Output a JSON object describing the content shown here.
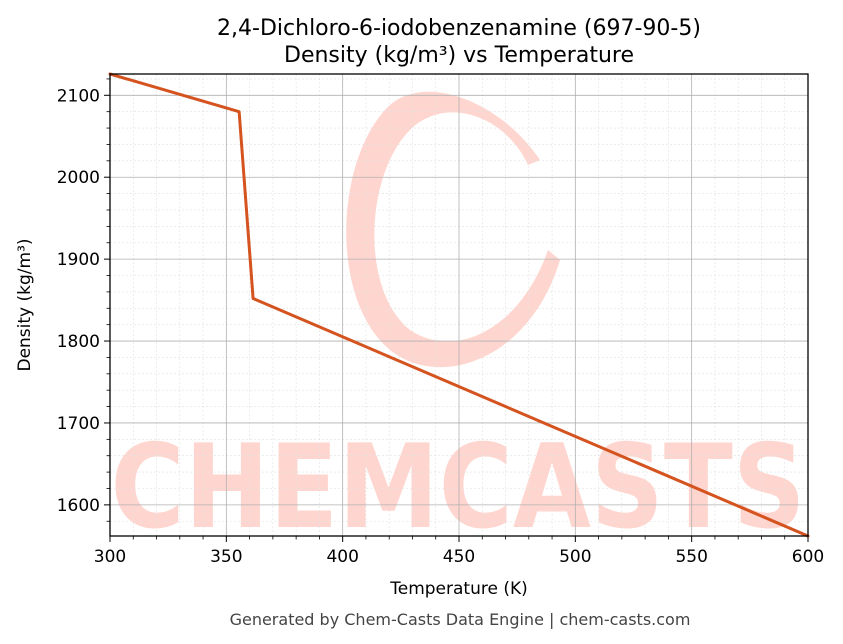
{
  "chart_data": {
    "type": "line",
    "title": "2,4-Dichloro-6-iodobenzenamine (697-90-5)",
    "subtitle": "Density (kg/m³) vs Temperature",
    "xlabel": "Temperature (K)",
    "ylabel": "Density (kg/m³)",
    "xlim": [
      300,
      600
    ],
    "ylim": [
      1562,
      2126
    ],
    "xticks": [
      300,
      350,
      400,
      450,
      500,
      550,
      600
    ],
    "yticks": [
      1600,
      1700,
      1800,
      1900,
      2000,
      2100
    ],
    "grid": true,
    "series": [
      {
        "x": [
          300,
          355.5,
          361.5,
          600
        ],
        "y": [
          2126,
          2080,
          1852,
          1562
        ]
      }
    ],
    "colors": {
      "line": "#d4531f",
      "watermark": "#ffd6cf",
      "grid_major": "#b0b0b0",
      "grid_minor": "#e0e0e0"
    }
  },
  "watermark": {
    "text": "CHEMCASTS"
  },
  "footer": {
    "text": "Generated by Chem-Casts Data Engine | chem-casts.com"
  }
}
